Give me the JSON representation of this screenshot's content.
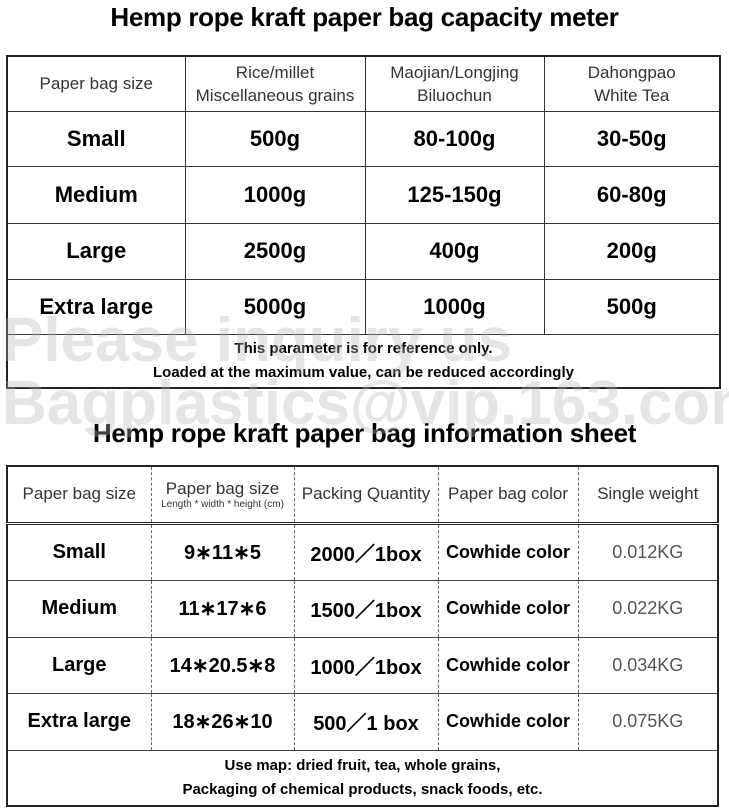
{
  "capacity": {
    "title": "Hemp rope kraft paper bag capacity meter",
    "headers": [
      "Paper bag size",
      "Rice/millet\nMiscellaneous grains",
      "Maojian/Longjing\nBiluochun",
      "Dahongpao\nWhite Tea"
    ],
    "h1a": "Rice/millet",
    "h1b": "Miscellaneous grains",
    "h2a": "Maojian/Longjing",
    "h2b": "Biluochun",
    "h3a": "Dahongpao",
    "h3b": "White Tea",
    "rows": [
      [
        "Small",
        "500g",
        "80-100g",
        "30-50g"
      ],
      [
        "Medium",
        "1000g",
        "125-150g",
        "60-80g"
      ],
      [
        "Large",
        "2500g",
        "400g",
        "200g"
      ],
      [
        "Extra large",
        "5000g",
        "1000g",
        "500g"
      ]
    ],
    "note1": "This parameter is for reference only.",
    "note2": "Loaded at the maximum value, can be reduced accordingly"
  },
  "watermark": {
    "line1": "Please inquiry us",
    "line2": "Bagplastics@vip.163.com"
  },
  "info": {
    "title": "Hemp rope kraft paper bag information sheet",
    "headers": [
      "Paper bag size",
      "Paper bag size",
      "Packing Quantity",
      "Paper bag color",
      "Single weight"
    ],
    "subheader": "Length * width * height (cm)",
    "rows": [
      [
        "Small",
        "9∗11∗5",
        "2000／1box",
        "Cowhide color",
        "0.012KG"
      ],
      [
        "Medium",
        "11∗17∗6",
        "1500／1box",
        "Cowhide color",
        "0.022KG"
      ],
      [
        "Large",
        "14∗20.5∗8",
        "1000／1box",
        "Cowhide color",
        "0.034KG"
      ],
      [
        "Extra large",
        "18∗26∗10",
        "500／1 box",
        "Cowhide color",
        "0.075KG"
      ]
    ],
    "note1": "Use map: dried fruit, tea, whole grains,",
    "note2": "Packaging of chemical products, snack foods, etc."
  }
}
